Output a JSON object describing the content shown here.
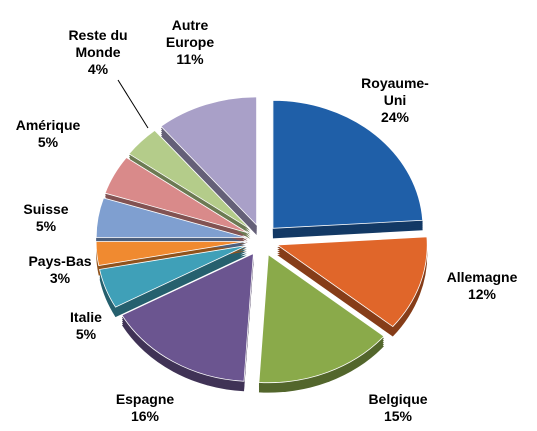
{
  "chart_data": {
    "type": "pie",
    "categories": [
      "Royaume-Uni",
      "Allemagne",
      "Belgique",
      "Espagne",
      "Italie",
      "Pays-Bas",
      "Suisse",
      "Amérique",
      "Reste du Monde",
      "Autre Europe"
    ],
    "values": [
      24,
      12,
      15,
      16,
      5,
      3,
      5,
      5,
      4,
      11
    ],
    "value_labels": [
      "24%",
      "12%",
      "15%",
      "16%",
      "5%",
      "3%",
      "5%",
      "5%",
      "4%",
      "11%"
    ],
    "colors": [
      "#1f5fa8",
      "#e0662a",
      "#8aaa4a",
      "#6b5590",
      "#3fa0b8",
      "#f08a30",
      "#7f9fd0",
      "#d98a8a",
      "#b4cc8a",
      "#a9a0c8"
    ]
  }
}
